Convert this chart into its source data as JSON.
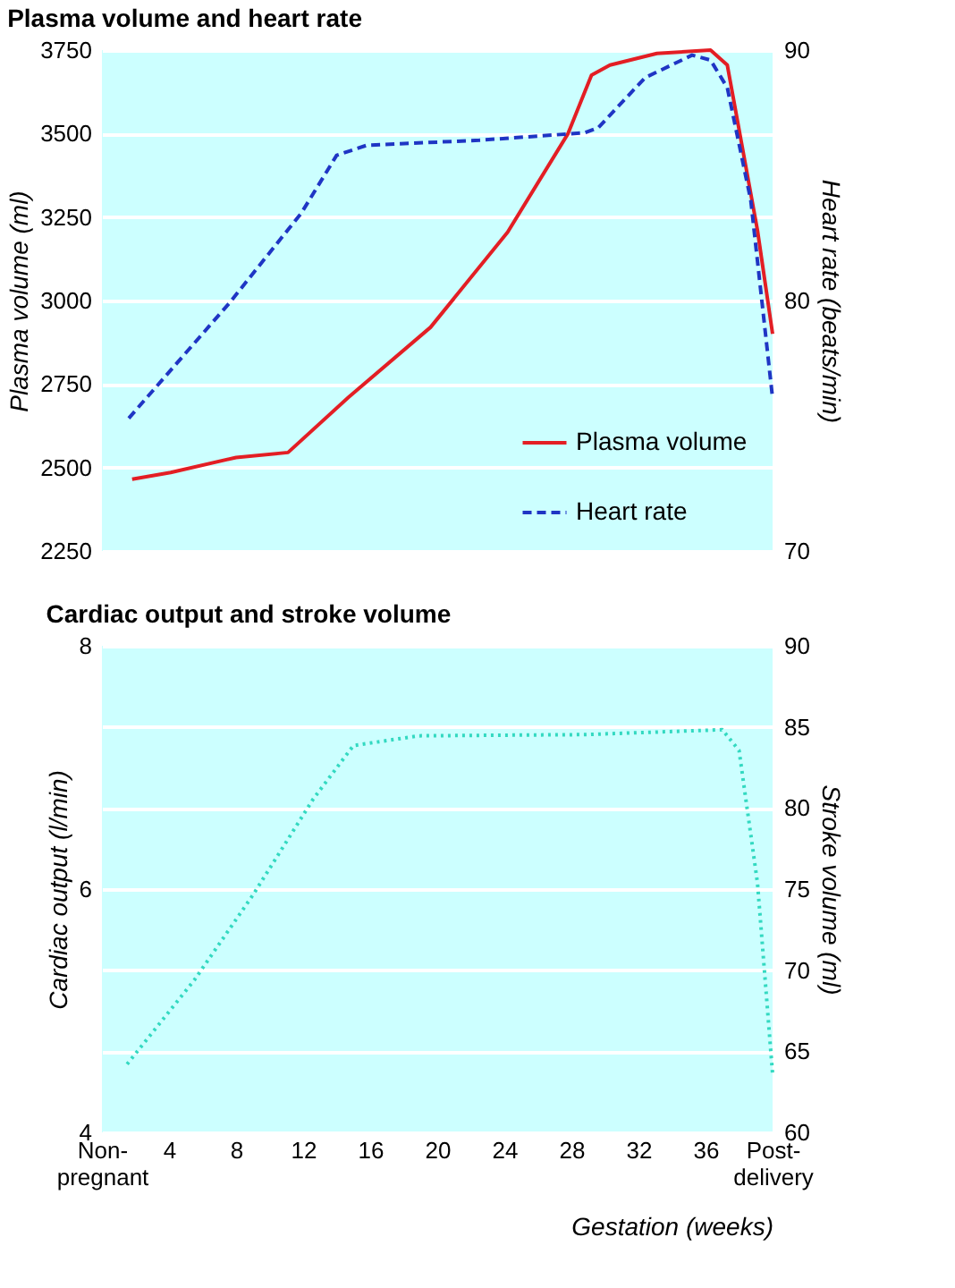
{
  "chart_data": [
    {
      "type": "line",
      "title": "Plasma volume and heart rate",
      "ylabel": "Plasma volume (ml)",
      "y2label": "Heart rate (beats/min)",
      "xlim": [
        0,
        40
      ],
      "ylim": [
        2250,
        3750
      ],
      "yticks": [
        2250,
        2500,
        2750,
        3000,
        3250,
        3500,
        3750
      ],
      "y2lim": [
        70,
        90
      ],
      "y2ticks": [
        70,
        80,
        90
      ],
      "grid": "y",
      "legend": "bottom right",
      "tick_labels": "y",
      "series": [
        {
          "name": "Plasma volume",
          "color": "#e31e24",
          "line_style": "solid",
          "x": [
            1.8,
            4.1,
            8,
            11.1,
            14.7,
            19.6,
            24.2,
            27.8,
            29.2,
            30.3,
            33.1,
            36.3,
            37.3,
            39.1,
            40
          ],
          "values": [
            2465,
            2485,
            2530,
            2545,
            2710,
            2920,
            3205,
            3500,
            3675,
            3705,
            3740,
            3750,
            3705,
            3210,
            2900
          ]
        },
        {
          "name": "Heart rate",
          "axis": "y2",
          "color": "#1f35c4",
          "line_style": "dashed",
          "x": [
            1.6,
            7.6,
            11.9,
            14,
            15.8,
            22.5,
            28.8,
            29.6,
            32.4,
            35.2,
            36.3,
            37.3,
            38.7,
            40
          ],
          "values": [
            75.3,
            79.9,
            83.5,
            85.8,
            86.2,
            86.4,
            86.7,
            86.9,
            88.9,
            89.8,
            89.6,
            88.5,
            84,
            76.1
          ]
        }
      ]
    },
    {
      "type": "line",
      "title": "Cardiac output and stroke volume",
      "xlabel": "Gestation (weeks)",
      "ylabel": "Cardiac output (l/min)",
      "y2label": "Stroke volume (ml)",
      "xlim": [
        0,
        40
      ],
      "xticks": [
        {
          "value": 0,
          "label": "Non-pregnant"
        },
        4,
        8,
        12,
        16,
        20,
        24,
        28,
        32,
        36,
        {
          "value": 40,
          "label": "Post-delivery"
        }
      ],
      "ylim": [
        4,
        8
      ],
      "yticks": [
        4,
        6,
        8
      ],
      "y2lim": [
        60,
        90
      ],
      "y2ticks": [
        60,
        65,
        70,
        75,
        80,
        85,
        90
      ],
      "grid": "y2",
      "series": [
        {
          "color": "#33d9c1",
          "line_style": "dotted",
          "x": [
            1.5,
            5.5,
            9,
            12.6,
            15,
            18.9,
            28.8,
            37,
            38,
            39.1,
            40
          ],
          "values": [
            4.56,
            5.25,
            5.95,
            6.74,
            7.18,
            7.26,
            7.27,
            7.31,
            7.14,
            6.05,
            4.48
          ]
        }
      ]
    }
  ]
}
